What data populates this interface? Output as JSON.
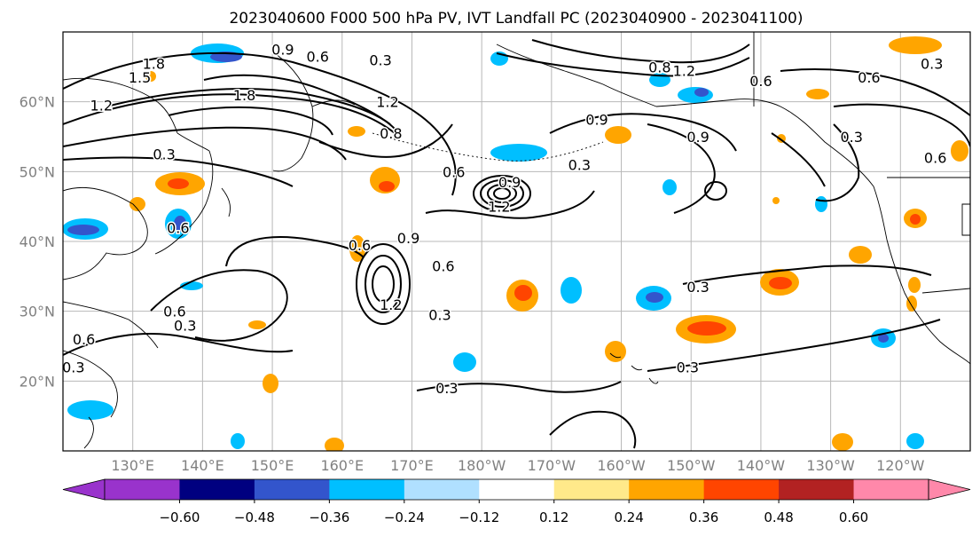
{
  "title": "2023040600 F000 500 hPa PV, IVT Landfall PC (2023040900 - 2023041100)",
  "lat_labels": [
    {
      "lat": 60,
      "text": "60°N"
    },
    {
      "lat": 50,
      "text": "50°N"
    },
    {
      "lat": 40,
      "text": "40°N"
    },
    {
      "lat": 30,
      "text": "30°N"
    },
    {
      "lat": 20,
      "text": "20°N"
    }
  ],
  "lon_labels": [
    {
      "lon": 130,
      "text": "130°E"
    },
    {
      "lon": 140,
      "text": "140°E"
    },
    {
      "lon": 150,
      "text": "150°E"
    },
    {
      "lon": 160,
      "text": "160°E"
    },
    {
      "lon": 170,
      "text": "170°E"
    },
    {
      "lon": 180,
      "text": "180°W"
    },
    {
      "lon": 190,
      "text": "170°W"
    },
    {
      "lon": 200,
      "text": "160°W"
    },
    {
      "lon": 210,
      "text": "150°W"
    },
    {
      "lon": 220,
      "text": "140°W"
    },
    {
      "lon": 230,
      "text": "130°W"
    },
    {
      "lon": 240,
      "text": "120°W"
    }
  ],
  "colorbar": {
    "colors": [
      "#9933cc",
      "#000080",
      "#3355cc",
      "#00bfff",
      "#b0e0ff",
      "#ffffff",
      "#ffe98a",
      "#ffa500",
      "#ff4500",
      "#b22222",
      "#ff88aa"
    ],
    "tick_labels": [
      "−0.60",
      "−0.48",
      "−0.36",
      "−0.24",
      "−0.12",
      "0.12",
      "0.24",
      "0.36",
      "0.48",
      "0.60"
    ]
  },
  "contour_labels": [
    {
      "text": "0.9",
      "lon": 151.5,
      "lat": 67.5
    },
    {
      "text": "0.6",
      "lon": 156.5,
      "lat": 66.5
    },
    {
      "text": "0.3",
      "lon": 165.5,
      "lat": 66
    },
    {
      "text": "1.8",
      "lon": 133,
      "lat": 65.5
    },
    {
      "text": "1.5",
      "lon": 131,
      "lat": 63.5
    },
    {
      "text": "1.2",
      "lon": 125.5,
      "lat": 59.5
    },
    {
      "text": "1.8",
      "lon": 146,
      "lat": 61
    },
    {
      "text": "1.2",
      "lon": 166.5,
      "lat": 60
    },
    {
      "text": "0.8",
      "lon": 167,
      "lat": 55.5
    },
    {
      "text": "0.3",
      "lon": 134.5,
      "lat": 52.5
    },
    {
      "text": "0.6",
      "lon": 176,
      "lat": 50
    },
    {
      "text": "0.9",
      "lon": 184,
      "lat": 48.5
    },
    {
      "text": "1.2",
      "lon": 182.5,
      "lat": 45
    },
    {
      "text": "0.3",
      "lon": 194,
      "lat": 51
    },
    {
      "text": "0.9",
      "lon": 196.5,
      "lat": 57.5
    },
    {
      "text": "0.9",
      "lon": 211,
      "lat": 55
    },
    {
      "text": "0.8",
      "lon": 205.5,
      "lat": 65
    },
    {
      "text": "1.2",
      "lon": 209,
      "lat": 64.5
    },
    {
      "text": "0.6",
      "lon": 220,
      "lat": 63
    },
    {
      "text": "0.3",
      "lon": 233,
      "lat": 55
    },
    {
      "text": "0.6",
      "lon": 235.5,
      "lat": 63.5
    },
    {
      "text": "0.3",
      "lon": 244.5,
      "lat": 65.5
    },
    {
      "text": "0.6",
      "lon": 162.5,
      "lat": 39.5
    },
    {
      "text": "0.9",
      "lon": 169.5,
      "lat": 40.5
    },
    {
      "text": "0.6",
      "lon": 174.5,
      "lat": 36.5
    },
    {
      "text": "0.3",
      "lon": 174,
      "lat": 29.5
    },
    {
      "text": "1.2",
      "lon": 167,
      "lat": 31
    },
    {
      "text": "0.6",
      "lon": 136,
      "lat": 30
    },
    {
      "text": "0.3",
      "lon": 137.5,
      "lat": 28
    },
    {
      "text": "0.3",
      "lon": 121.5,
      "lat": 22
    },
    {
      "text": "0.6",
      "lon": 123,
      "lat": 26
    },
    {
      "text": "0.3",
      "lon": 211,
      "lat": 33.5
    },
    {
      "text": "0.3",
      "lon": 209.5,
      "lat": 22
    },
    {
      "text": "0.3",
      "lon": 175,
      "lat": 19
    },
    {
      "text": "0.6",
      "lon": 245,
      "lat": 52
    },
    {
      "text": "0.6",
      "lon": 136.5,
      "lat": 42
    }
  ]
}
